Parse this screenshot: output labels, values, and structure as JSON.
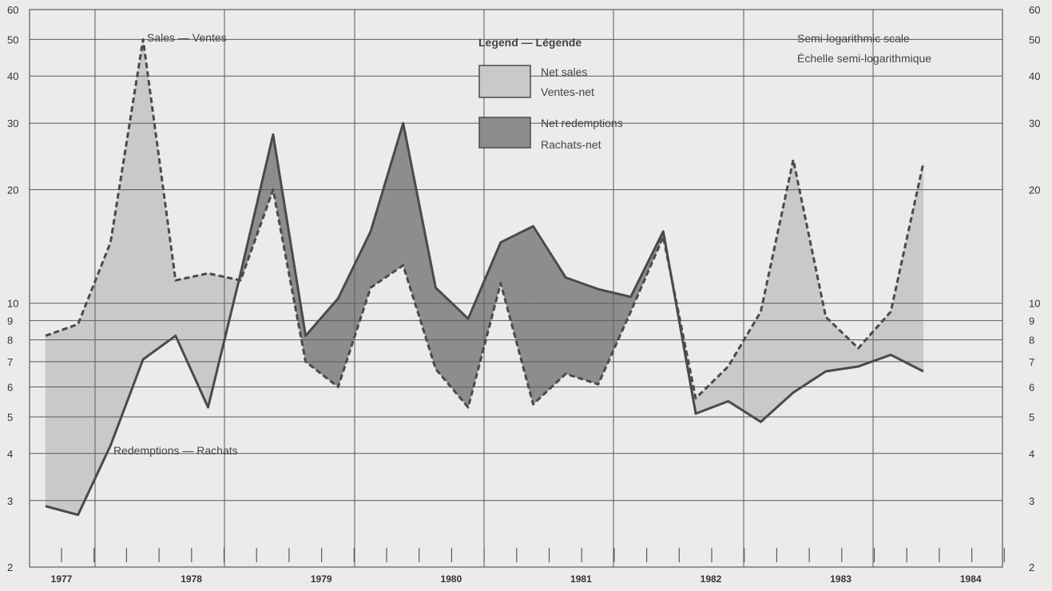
{
  "chart_data": {
    "type": "area",
    "scale_note": {
      "line1": "Semi-logarithmic scale",
      "line2": "Échelle semi-logarithmique"
    },
    "y_scale": "log",
    "ylim": [
      2,
      60
    ],
    "y_ticks": [
      2,
      3,
      4,
      5,
      6,
      7,
      8,
      9,
      10,
      20,
      30,
      40,
      50,
      60
    ],
    "x_quarters": [
      "1977 Q1",
      "1977 Q2",
      "1977 Q3",
      "1977 Q4",
      "1978 Q1",
      "1978 Q2",
      "1978 Q3",
      "1978 Q4",
      "1979 Q1",
      "1979 Q2",
      "1979 Q3",
      "1979 Q4",
      "1980 Q1",
      "1980 Q2",
      "1980 Q3",
      "1980 Q4",
      "1981 Q1",
      "1981 Q2",
      "1981 Q3",
      "1981 Q4",
      "1982 Q1",
      "1982 Q2",
      "1982 Q3",
      "1982 Q4",
      "1983 Q1",
      "1983 Q2",
      "1983 Q3",
      "1983 Q4",
      "1984 Q1",
      "1984 Q2"
    ],
    "year_labels": [
      "1977",
      "1978",
      "1979",
      "1980",
      "1981",
      "1982",
      "1983",
      "1984"
    ],
    "legend": {
      "title": "Legend — Légende",
      "net_sales_line1": "Net sales",
      "net_sales_line2": "Ventes-net",
      "net_redemptions_line1": "Net redemptions",
      "net_redemptions_line2": "Rachats-net"
    },
    "series": [
      {
        "name": "Sales — Ventes",
        "style": "dashed",
        "values": [
          8.2,
          8.8,
          14.5,
          50,
          11.5,
          12,
          11.5,
          20,
          7,
          6,
          11,
          12.6,
          6.7,
          5.3,
          11.3,
          5.4,
          6.5,
          6.1,
          9.5,
          15,
          5.6,
          6.8,
          9.5,
          24,
          9.2,
          7.6,
          9.5,
          23.5
        ]
      },
      {
        "name": "Redemptions — Rachats",
        "style": "solid",
        "values": [
          2.9,
          2.75,
          4.2,
          7.1,
          8.2,
          5.3,
          12,
          28,
          8.2,
          10.3,
          15.5,
          30,
          11,
          9.1,
          14.5,
          16,
          11.7,
          10.9,
          10.4,
          15.5,
          5.1,
          5.5,
          4.85,
          5.8,
          6.6,
          6.8,
          7.3,
          6.6
        ]
      }
    ],
    "colors": {
      "background": "#ebebea",
      "net_sales": "#c9c9c7",
      "net_redemptions": "#8d8d8b",
      "line": "#4a4a4a",
      "grid": "#5a5a5a"
    }
  }
}
